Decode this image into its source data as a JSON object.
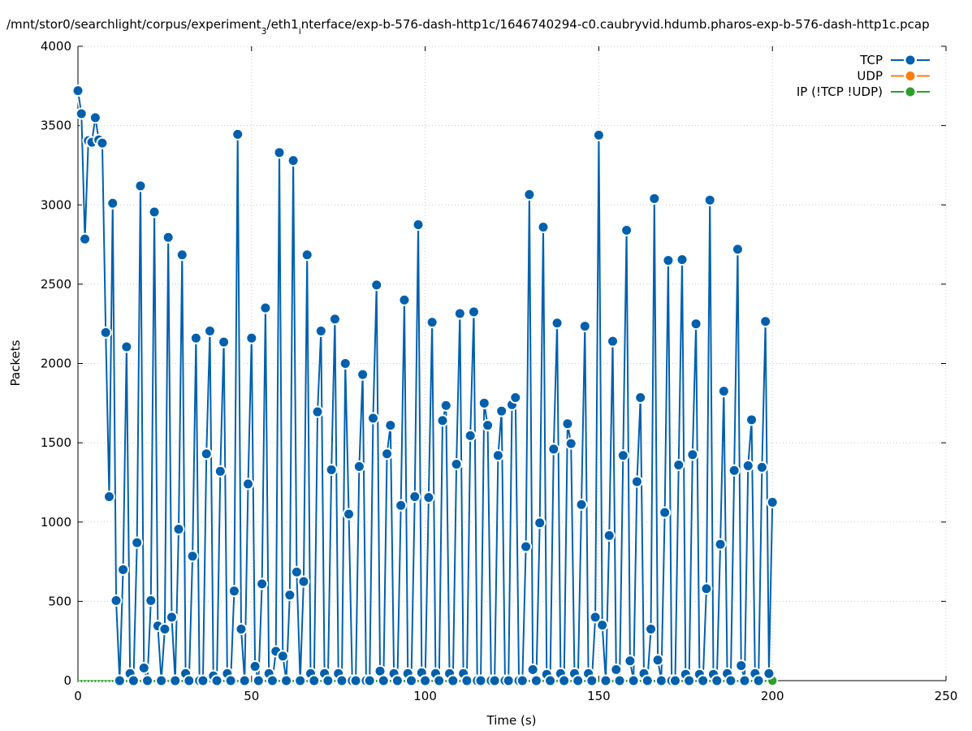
{
  "chart_data": {
    "type": "line",
    "title_parts": [
      {
        "text": "/mnt/stor0/searchlight/corpus/experiment",
        "sub": false
      },
      {
        "text": "3",
        "sub": true
      },
      {
        "text": "/eth1",
        "sub": false
      },
      {
        "text": "i",
        "sub": true
      },
      {
        "text": "nterface/exp-b-576-dash-http1c/1646740294-c0.caubryvid.hdumb.pharos-exp-b-576-dash-http1c.pcap",
        "sub": false
      }
    ],
    "xlabel": "Time (s)",
    "ylabel": "Packets",
    "xlim": [
      0,
      250
    ],
    "ylim": [
      0,
      4000
    ],
    "xticks": [
      0,
      50,
      100,
      150,
      200,
      250
    ],
    "yticks": [
      0,
      500,
      1000,
      1500,
      2000,
      2500,
      3000,
      3500,
      4000
    ],
    "grid": true,
    "legend_position": "top-right",
    "series": [
      {
        "name": "TCP",
        "color": "#0060ad",
        "x_start": 0,
        "x_step": 1,
        "values": [
          3720,
          3575,
          2785,
          3405,
          3395,
          3550,
          3410,
          3390,
          2195,
          1160,
          3010,
          505,
          0,
          700,
          2105,
          45,
          0,
          870,
          3120,
          80,
          0,
          505,
          2955,
          345,
          0,
          325,
          2795,
          400,
          0,
          955,
          2685,
          45,
          0,
          785,
          2160,
          0,
          0,
          1430,
          2205,
          30,
          0,
          1320,
          2135,
          45,
          0,
          565,
          3445,
          325,
          0,
          1240,
          2160,
          90,
          0,
          610,
          2350,
          45,
          0,
          185,
          3330,
          155,
          0,
          540,
          3280,
          685,
          0,
          625,
          2685,
          45,
          0,
          1695,
          2205,
          45,
          0,
          1330,
          2280,
          45,
          0,
          2000,
          1050,
          0,
          0,
          1350,
          1930,
          0,
          0,
          1655,
          2495,
          60,
          0,
          1430,
          1610,
          45,
          0,
          1105,
          2400,
          45,
          0,
          1160,
          2875,
          50,
          0,
          1155,
          2260,
          45,
          0,
          1640,
          1735,
          45,
          0,
          1365,
          2315,
          45,
          0,
          1545,
          2325,
          0,
          0,
          1750,
          1610,
          0,
          0,
          1420,
          1700,
          0,
          0,
          1740,
          1785,
          0,
          0,
          845,
          3065,
          70,
          0,
          995,
          2860,
          40,
          0,
          1460,
          2255,
          45,
          0,
          1620,
          1495,
          45,
          0,
          1110,
          2235,
          45,
          0,
          400,
          3440,
          350,
          0,
          915,
          2140,
          70,
          0,
          1420,
          2840,
          125,
          0,
          1255,
          1785,
          45,
          0,
          325,
          3040,
          130,
          0,
          1060,
          2650,
          0,
          0,
          1360,
          2655,
          40,
          0,
          1425,
          2250,
          40,
          0,
          580,
          3030,
          40,
          0,
          860,
          1825,
          45,
          0,
          1325,
          2720,
          95,
          0,
          1355,
          1645,
          45,
          0,
          1345,
          2265,
          45,
          1125
        ]
      },
      {
        "name": "UDP",
        "color": "#ff7f0e",
        "x_start": 0,
        "x_step": 1,
        "values": []
      },
      {
        "name": "IP (!TCP  !UDP)",
        "color": "#2ca02c",
        "x_start": 0,
        "x_step": 1,
        "constant": 0,
        "count": 201
      }
    ]
  }
}
